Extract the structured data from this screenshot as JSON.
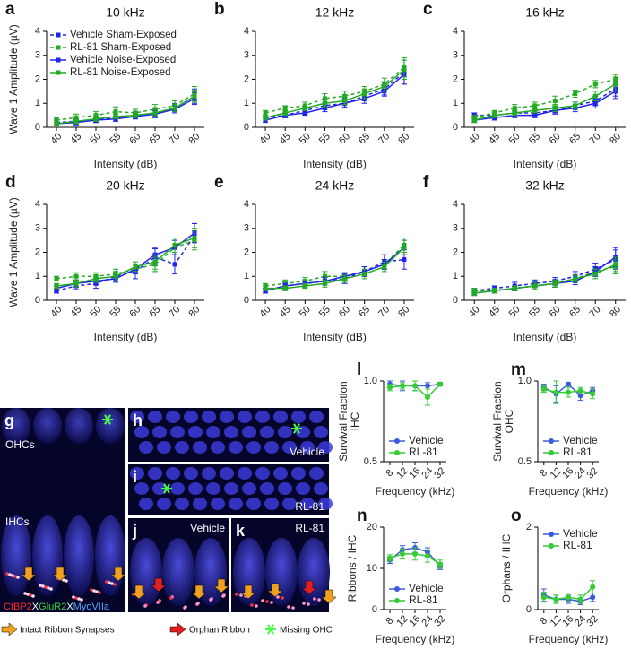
{
  "chart_data": [
    {
      "type": "line",
      "panel": "a",
      "title": "10 kHz",
      "xlabel": "Intensity (dB)",
      "ylabel": "Wave 1 Amplitude (µV)",
      "legend": "upper-left",
      "categories": [
        "40",
        "45",
        "50",
        "55",
        "60",
        "65",
        "70",
        "80"
      ],
      "ylim": [
        0,
        4
      ],
      "yticks": [
        0,
        1,
        2,
        3,
        4
      ],
      "series": [
        {
          "name": "Vehicle Sham-Exposed",
          "color": "#2222ee",
          "dashed": true,
          "marker": "square",
          "values": [
            0.2,
            0.25,
            0.3,
            0.4,
            0.5,
            0.6,
            0.8,
            1.3
          ],
          "errors": [
            0.1,
            0.1,
            0.1,
            0.15,
            0.15,
            0.15,
            0.2,
            0.3
          ]
        },
        {
          "name": "RL-81 Sham-Exposed",
          "color": "#22aa22",
          "dashed": true,
          "marker": "square",
          "values": [
            0.3,
            0.4,
            0.5,
            0.65,
            0.6,
            0.75,
            0.9,
            1.4
          ],
          "errors": [
            0.1,
            0.15,
            0.15,
            0.2,
            0.15,
            0.2,
            0.2,
            0.3
          ]
        },
        {
          "name": "Vehicle Noise-Exposed",
          "color": "#2222ee",
          "dashed": false,
          "marker": "square",
          "values": [
            0.15,
            0.2,
            0.3,
            0.35,
            0.45,
            0.55,
            0.75,
            1.2
          ],
          "errors": [
            0.05,
            0.1,
            0.1,
            0.1,
            0.1,
            0.15,
            0.15,
            0.25
          ]
        },
        {
          "name": "RL-81 Noise-Exposed",
          "color": "#22aa22",
          "dashed": false,
          "marker": "square",
          "values": [
            0.15,
            0.25,
            0.35,
            0.45,
            0.5,
            0.6,
            0.8,
            1.3
          ],
          "errors": [
            0.05,
            0.1,
            0.1,
            0.1,
            0.1,
            0.15,
            0.15,
            0.25
          ]
        }
      ]
    },
    {
      "type": "line",
      "panel": "b",
      "title": "12 kHz",
      "xlabel": "Intensity (dB)",
      "categories": [
        "40",
        "45",
        "50",
        "55",
        "60",
        "65",
        "70",
        "80"
      ],
      "ylim": [
        0,
        4
      ],
      "yticks": [
        0,
        1,
        2,
        3,
        4
      ],
      "series": [
        {
          "name": "Vehicle Sham-Exposed",
          "color": "#2222ee",
          "dashed": true,
          "marker": "square",
          "values": [
            0.4,
            0.5,
            0.7,
            0.9,
            1.0,
            1.3,
            1.6,
            2.3
          ],
          "errors": [
            0.1,
            0.1,
            0.15,
            0.15,
            0.2,
            0.2,
            0.25,
            0.5
          ]
        },
        {
          "name": "RL-81 Sham-Exposed",
          "color": "#22aa22",
          "dashed": true,
          "marker": "square",
          "values": [
            0.6,
            0.8,
            0.9,
            1.2,
            1.3,
            1.5,
            1.8,
            2.5
          ],
          "errors": [
            0.1,
            0.1,
            0.15,
            0.2,
            0.2,
            0.2,
            0.25,
            0.4
          ]
        },
        {
          "name": "Vehicle Noise-Exposed",
          "color": "#2222ee",
          "dashed": false,
          "marker": "square",
          "values": [
            0.3,
            0.5,
            0.6,
            0.8,
            1.0,
            1.2,
            1.5,
            2.2
          ],
          "errors": [
            0.1,
            0.1,
            0.1,
            0.15,
            0.15,
            0.2,
            0.2,
            0.4
          ]
        },
        {
          "name": "RL-81 Noise-Exposed",
          "color": "#22aa22",
          "dashed": false,
          "marker": "square",
          "values": [
            0.4,
            0.6,
            0.8,
            1.0,
            1.1,
            1.4,
            1.7,
            2.4
          ],
          "errors": [
            0.1,
            0.1,
            0.1,
            0.15,
            0.15,
            0.2,
            0.2,
            0.4
          ]
        }
      ]
    },
    {
      "type": "line",
      "panel": "c",
      "title": "16 kHz",
      "xlabel": "Intensity (dB)",
      "categories": [
        "40",
        "45",
        "50",
        "55",
        "60",
        "65",
        "70",
        "80"
      ],
      "ylim": [
        0,
        4
      ],
      "yticks": [
        0,
        1,
        2,
        3,
        4
      ],
      "series": [
        {
          "name": "Vehicle Sham-Exposed",
          "color": "#2222ee",
          "dashed": true,
          "marker": "square",
          "values": [
            0.5,
            0.5,
            0.6,
            0.6,
            0.7,
            0.9,
            1.1,
            1.6
          ],
          "errors": [
            0.1,
            0.1,
            0.1,
            0.1,
            0.15,
            0.15,
            0.2,
            0.3
          ]
        },
        {
          "name": "RL-81 Sham-Exposed",
          "color": "#22aa22",
          "dashed": true,
          "marker": "square",
          "values": [
            0.4,
            0.6,
            0.8,
            0.9,
            1.1,
            1.4,
            1.8,
            2.0
          ],
          "errors": [
            0.1,
            0.1,
            0.15,
            0.15,
            0.2,
            0.15,
            0.15,
            0.2
          ]
        },
        {
          "name": "Vehicle Noise-Exposed",
          "color": "#2222ee",
          "dashed": false,
          "marker": "square",
          "values": [
            0.3,
            0.4,
            0.5,
            0.5,
            0.7,
            0.8,
            1.0,
            1.5
          ],
          "errors": [
            0.1,
            0.1,
            0.1,
            0.1,
            0.1,
            0.15,
            0.2,
            0.3
          ]
        },
        {
          "name": "RL-81 Noise-Exposed",
          "color": "#22aa22",
          "dashed": false,
          "marker": "square",
          "values": [
            0.3,
            0.5,
            0.6,
            0.7,
            0.8,
            0.9,
            1.3,
            1.8
          ],
          "errors": [
            0.1,
            0.1,
            0.1,
            0.1,
            0.15,
            0.15,
            0.2,
            0.3
          ]
        }
      ]
    },
    {
      "type": "line",
      "panel": "d",
      "title": "20 kHz",
      "xlabel": "Intensity (dB)",
      "ylabel": "Wave 1 Amplitude (µV)",
      "categories": [
        "40",
        "45",
        "50",
        "55",
        "60",
        "65",
        "70",
        "80"
      ],
      "ylim": [
        0,
        4
      ],
      "yticks": [
        0,
        1,
        2,
        3,
        4
      ],
      "series": [
        {
          "name": "Vehicle Sham-Exposed",
          "color": "#2222ee",
          "dashed": true,
          "marker": "square",
          "values": [
            0.4,
            0.6,
            0.7,
            1.0,
            1.2,
            1.8,
            1.5,
            2.7
          ],
          "errors": [
            0.1,
            0.15,
            0.2,
            0.2,
            0.3,
            0.35,
            0.4,
            0.5
          ]
        },
        {
          "name": "RL-81 Sham-Exposed",
          "color": "#22aa22",
          "dashed": true,
          "marker": "square",
          "values": [
            0.9,
            1.0,
            1.0,
            1.1,
            1.3,
            1.5,
            2.2,
            2.5
          ],
          "errors": [
            0.1,
            0.15,
            0.15,
            0.2,
            0.2,
            0.3,
            0.3,
            0.4
          ]
        },
        {
          "name": "Vehicle Noise-Exposed",
          "color": "#2222ee",
          "dashed": false,
          "marker": "square",
          "values": [
            0.5,
            0.7,
            0.8,
            0.9,
            1.3,
            1.9,
            2.2,
            2.8
          ],
          "errors": [
            0.1,
            0.15,
            0.15,
            0.15,
            0.2,
            0.3,
            0.3,
            0.4
          ]
        },
        {
          "name": "RL-81 Noise-Exposed",
          "color": "#22aa22",
          "dashed": false,
          "marker": "square",
          "values": [
            0.6,
            0.7,
            0.9,
            1.0,
            1.4,
            1.6,
            2.3,
            2.6
          ],
          "errors": [
            0.1,
            0.15,
            0.15,
            0.2,
            0.2,
            0.3,
            0.3,
            0.4
          ]
        }
      ]
    },
    {
      "type": "line",
      "panel": "e",
      "title": "24 kHz",
      "xlabel": "Intensity (dB)",
      "categories": [
        "40",
        "45",
        "50",
        "55",
        "60",
        "65",
        "70",
        "80"
      ],
      "ylim": [
        0,
        4
      ],
      "yticks": [
        0,
        1,
        2,
        3,
        4
      ],
      "series": [
        {
          "name": "Vehicle Sham-Exposed",
          "color": "#2222ee",
          "dashed": true,
          "marker": "square",
          "values": [
            0.4,
            0.6,
            0.7,
            0.8,
            0.9,
            1.2,
            1.6,
            1.7
          ],
          "errors": [
            0.1,
            0.15,
            0.15,
            0.15,
            0.2,
            0.2,
            0.3,
            0.4
          ]
        },
        {
          "name": "RL-81 Sham-Exposed",
          "color": "#22aa22",
          "dashed": true,
          "marker": "square",
          "values": [
            0.6,
            0.7,
            0.8,
            1.0,
            1.0,
            1.2,
            1.5,
            2.3
          ],
          "errors": [
            0.1,
            0.15,
            0.15,
            0.2,
            0.15,
            0.2,
            0.2,
            0.3
          ]
        },
        {
          "name": "Vehicle Noise-Exposed",
          "color": "#2222ee",
          "dashed": false,
          "marker": "square",
          "values": [
            0.4,
            0.6,
            0.7,
            0.8,
            1.0,
            1.2,
            1.5,
            2.2
          ],
          "errors": [
            0.1,
            0.1,
            0.1,
            0.15,
            0.15,
            0.2,
            0.2,
            0.3
          ]
        },
        {
          "name": "RL-81 Noise-Exposed",
          "color": "#22aa22",
          "dashed": false,
          "marker": "square",
          "values": [
            0.5,
            0.5,
            0.6,
            0.7,
            0.9,
            1.1,
            1.4,
            2.2
          ],
          "errors": [
            0.1,
            0.1,
            0.1,
            0.15,
            0.15,
            0.2,
            0.2,
            0.3
          ]
        }
      ]
    },
    {
      "type": "line",
      "panel": "f",
      "title": "32 kHz",
      "xlabel": "Intensity (dB)",
      "categories": [
        "40",
        "45",
        "50",
        "55",
        "60",
        "65",
        "70",
        "80"
      ],
      "ylim": [
        0,
        4
      ],
      "yticks": [
        0,
        1,
        2,
        3,
        4
      ],
      "series": [
        {
          "name": "Vehicle Sham-Exposed",
          "color": "#2222ee",
          "dashed": true,
          "marker": "square",
          "values": [
            0.4,
            0.5,
            0.6,
            0.7,
            0.8,
            1.0,
            1.3,
            1.7
          ],
          "errors": [
            0.1,
            0.1,
            0.15,
            0.15,
            0.15,
            0.2,
            0.25,
            0.4
          ]
        },
        {
          "name": "RL-81 Sham-Exposed",
          "color": "#22aa22",
          "dashed": true,
          "marker": "square",
          "values": [
            0.4,
            0.4,
            0.5,
            0.6,
            0.7,
            0.9,
            1.2,
            1.4
          ],
          "errors": [
            0.1,
            0.1,
            0.1,
            0.15,
            0.15,
            0.15,
            0.2,
            0.3
          ]
        },
        {
          "name": "Vehicle Noise-Exposed",
          "color": "#2222ee",
          "dashed": false,
          "marker": "square",
          "values": [
            0.3,
            0.4,
            0.5,
            0.6,
            0.7,
            0.8,
            1.2,
            1.8
          ],
          "errors": [
            0.1,
            0.1,
            0.1,
            0.15,
            0.15,
            0.15,
            0.2,
            0.4
          ]
        },
        {
          "name": "RL-81 Noise-Exposed",
          "color": "#22aa22",
          "dashed": false,
          "marker": "square",
          "values": [
            0.3,
            0.4,
            0.5,
            0.6,
            0.7,
            0.9,
            1.1,
            1.5
          ],
          "errors": [
            0.1,
            0.1,
            0.1,
            0.15,
            0.15,
            0.15,
            0.2,
            0.3
          ]
        }
      ]
    },
    {
      "type": "line",
      "panel": "l",
      "xlabel": "Frequency (kHz)",
      "ylabel": [
        "Survival Fraction",
        "IHC"
      ],
      "legend": "lower-right",
      "categories": [
        "8",
        "12",
        "16",
        "24",
        "32"
      ],
      "ylim": [
        0.5,
        1
      ],
      "yticks": [
        0.5,
        {
          "value": 1,
          "label": "1.0"
        }
      ],
      "series": [
        {
          "name": "Vehicle",
          "color": "#3b5bdb",
          "dashed": false,
          "marker": "circle",
          "values": [
            0.98,
            0.97,
            0.97,
            0.97,
            0.98
          ],
          "errors": [
            0.02,
            0.03,
            0.03,
            0.02,
            0.01
          ]
        },
        {
          "name": "RL-81",
          "color": "#33cc33",
          "dashed": false,
          "marker": "circle",
          "values": [
            0.96,
            0.97,
            0.97,
            0.9,
            0.98
          ],
          "errors": [
            0.02,
            0.02,
            0.03,
            0.05,
            0.01
          ]
        }
      ]
    },
    {
      "type": "line",
      "panel": "m",
      "xlabel": "Frequency (kHz)",
      "ylabel": [
        "Survival Fraction",
        "OHC"
      ],
      "legend": "lower-right",
      "categories": [
        "8",
        "12",
        "16",
        "24",
        "32"
      ],
      "ylim": [
        0.5,
        1
      ],
      "yticks": [
        0.5,
        {
          "value": 1,
          "label": "1.0"
        }
      ],
      "series": [
        {
          "name": "Vehicle",
          "color": "#3b5bdb",
          "dashed": false,
          "marker": "circle",
          "values": [
            0.96,
            0.92,
            0.98,
            0.91,
            0.94
          ],
          "errors": [
            0.02,
            0.05,
            0.01,
            0.03,
            0.02
          ]
        },
        {
          "name": "RL-81",
          "color": "#33cc33",
          "dashed": false,
          "marker": "circle",
          "values": [
            0.95,
            0.93,
            0.93,
            0.94,
            0.92
          ],
          "errors": [
            0.02,
            0.07,
            0.03,
            0.02,
            0.03
          ]
        }
      ]
    },
    {
      "type": "line",
      "panel": "n",
      "xlabel": "Frequency (kHz)",
      "ylabel": [
        "Ribbons / IHC"
      ],
      "legend": "lower-right",
      "categories": [
        "8",
        "12",
        "16",
        "24",
        "32"
      ],
      "ylim": [
        0,
        20
      ],
      "yticks": [
        0,
        10,
        20
      ],
      "series": [
        {
          "name": "Vehicle",
          "color": "#3b5bdb",
          "dashed": false,
          "marker": "circle",
          "values": [
            12,
            14.5,
            15,
            14,
            10.5
          ],
          "errors": [
            0.8,
            1,
            1.2,
            1,
            0.8
          ]
        },
        {
          "name": "RL-81",
          "color": "#33cc33",
          "dashed": false,
          "marker": "circle",
          "values": [
            12.5,
            13.5,
            13.5,
            13,
            11
          ],
          "errors": [
            0.8,
            1.2,
            1.5,
            1.5,
            1
          ]
        }
      ]
    },
    {
      "type": "line",
      "panel": "o",
      "xlabel": "Frequency (kHz)",
      "ylabel": [
        "Orphans / IHC"
      ],
      "legend": "upper-right",
      "categories": [
        "8",
        "12",
        "16",
        "24",
        "32"
      ],
      "ylim": [
        0,
        2
      ],
      "yticks": [
        0,
        2
      ],
      "series": [
        {
          "name": "Vehicle",
          "color": "#3b5bdb",
          "dashed": false,
          "marker": "circle",
          "values": [
            0.35,
            0.25,
            0.25,
            0.2,
            0.3
          ],
          "errors": [
            0.15,
            0.1,
            0.1,
            0.08,
            0.1
          ]
        },
        {
          "name": "RL-81",
          "color": "#33cc33",
          "dashed": false,
          "marker": "circle",
          "values": [
            0.3,
            0.25,
            0.3,
            0.25,
            0.55
          ],
          "errors": [
            0.12,
            0.1,
            0.1,
            0.1,
            0.15
          ]
        }
      ]
    }
  ],
  "micrographs": [
    {
      "panel": "g",
      "labels": [
        "OHCs",
        "IHCs"
      ]
    },
    {
      "panel": "h",
      "labels": [
        "Vehicle"
      ]
    },
    {
      "panel": "i",
      "labels": [
        "RL-81"
      ]
    },
    {
      "panel": "j",
      "labels": [
        "Vehicle"
      ]
    },
    {
      "panel": "k",
      "labels": [
        "RL-81"
      ]
    }
  ],
  "stain_key": [
    {
      "text": "CtBP2",
      "color": "#ff2a2a"
    },
    {
      "text": "X",
      "color": "#ffffff"
    },
    {
      "text": "GluR2",
      "color": "#33dd33"
    },
    {
      "text": "X",
      "color": "#ffffff"
    },
    {
      "text": "MyoVIIa",
      "color": "#55aaff"
    }
  ],
  "key": [
    "Intact Ribbon Synapses",
    "Orphan Ribbon",
    "Missing OHC"
  ]
}
